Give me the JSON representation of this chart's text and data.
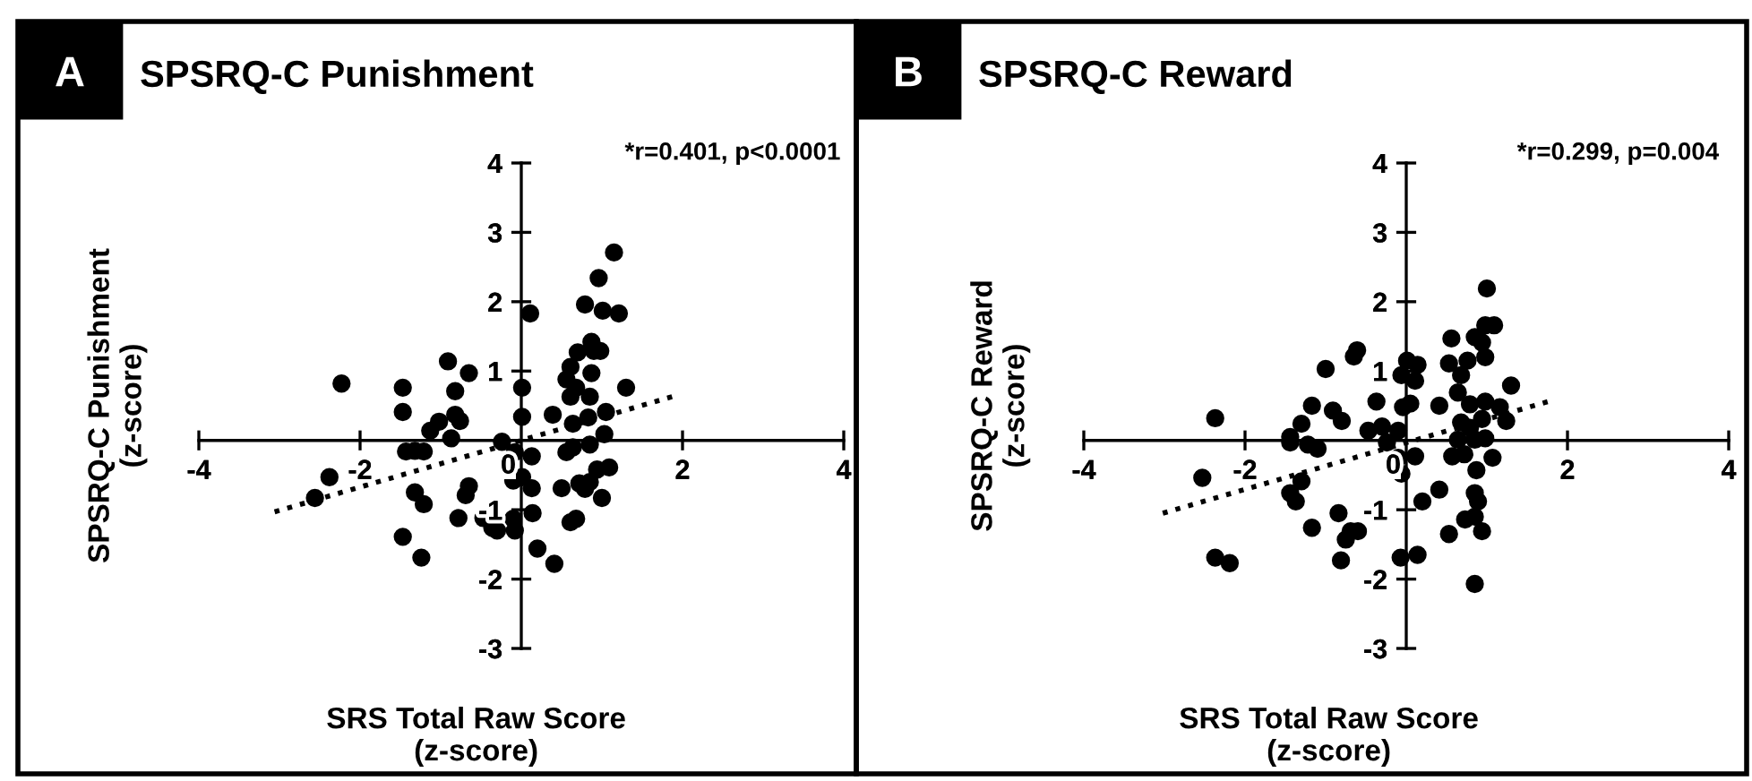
{
  "chart_data": [
    {
      "type": "scatter",
      "title": "SPSRQ-C Punishment",
      "xlabel": "SRS Total Raw Score\n(z-score)",
      "ylabel": "SPSRQ-C Punishment\n(z-score)",
      "annotations": [
        "A",
        "*r=0.401, p<0.0001"
      ],
      "xlim": [
        -4,
        4
      ],
      "ylim": [
        -3,
        4
      ],
      "xticks": [
        -4,
        -2,
        {
          "value": 0,
          "label": "0"
        },
        2,
        4
      ],
      "yticks": [
        -3,
        -2,
        -1,
        1,
        2,
        3,
        4
      ],
      "grid": false,
      "legend": false,
      "marker": "circle",
      "series": [
        {
          "color": "#000000",
          "x": [
            -2.23,
            -1.47,
            -1.47,
            -0.91,
            -0.65,
            -0.82,
            -0.82,
            -0.76,
            -1.02,
            -1.13,
            -0.87,
            -1.43,
            -1.32,
            -1.21,
            -2.38,
            -2.56,
            -1.32,
            -1.21,
            -1.47,
            -1.24,
            -0.65,
            -0.69,
            -0.78,
            -0.47,
            -0.36,
            -0.3,
            -0.1,
            -0.08,
            -0.24,
            0.01,
            0.01,
            0.11,
            -0.08,
            0.13,
            -0.1,
            0.01,
            0.13,
            0.14,
            0.2,
            0.41,
            0.39,
            0.5,
            0.61,
            0.68,
            0.56,
            0.64,
            0.85,
            0.64,
            0.83,
            1.05,
            1.03,
            0.94,
            1.09,
            0.85,
            0.72,
            0.79,
            1.0,
            1.3,
            0.61,
            0.56,
            0.68,
            0.85,
            0.61,
            0.7,
            0.87,
            0.9,
            0.98,
            0.87,
            0.79,
            1.01,
            1.21,
            0.96,
            1.15
          ],
          "values": [
            0.82,
            0.76,
            0.41,
            1.14,
            0.97,
            0.71,
            0.37,
            0.28,
            0.27,
            0.14,
            0.03,
            -0.16,
            -0.15,
            -0.16,
            -0.53,
            -0.83,
            -0.75,
            -0.92,
            -1.39,
            -1.69,
            -0.66,
            -0.79,
            -1.12,
            -1.12,
            -1.26,
            -1.3,
            -1.13,
            -1.3,
            -0.02,
            0.76,
            0.34,
            1.83,
            -0.17,
            -0.23,
            -0.58,
            -0.53,
            -0.69,
            -1.05,
            -1.56,
            -1.78,
            0.37,
            -0.69,
            -1.18,
            -1.13,
            -0.17,
            -0.1,
            -0.06,
            0.24,
            0.33,
            0.41,
            0.09,
            -0.42,
            -0.39,
            -0.6,
            -0.62,
            -0.7,
            -0.83,
            0.76,
            0.63,
            0.88,
            0.76,
            0.63,
            1.06,
            1.27,
            0.97,
            1.29,
            1.29,
            1.42,
            1.96,
            1.87,
            1.83,
            2.34,
            2.71
          ]
        },
        {
          "type": "line",
          "color": "#000000",
          "line_style": "dotted",
          "marker": "none",
          "x": [
            -3.06,
            1.87
          ],
          "values": [
            -1.03,
            0.63
          ]
        }
      ]
    },
    {
      "type": "scatter",
      "title": "SPSRQ-C Reward",
      "xlabel": "SRS Total Raw Score\n(z-score)",
      "ylabel": "SPSRQ-C Reward\n(z-score)",
      "annotations": [
        "B",
        "*r=0.299, p=0.004"
      ],
      "xlim": [
        -4,
        4
      ],
      "ylim": [
        -3,
        4
      ],
      "xticks": [
        -4,
        -2,
        {
          "value": 0,
          "label": "0"
        },
        2,
        4
      ],
      "yticks": [
        -3,
        -2,
        -1,
        1,
        2,
        3,
        4
      ],
      "grid": false,
      "legend": false,
      "marker": "circle",
      "series": [
        {
          "color": "#000000",
          "x": [
            -2.37,
            -2.53,
            -2.37,
            -2.19,
            -1.44,
            -1.44,
            -1.3,
            -1.17,
            -1.22,
            -1.1,
            -1.3,
            -1.44,
            -1.37,
            -1.17,
            -1.0,
            -0.91,
            -0.8,
            -0.65,
            -0.61,
            -0.37,
            -0.47,
            -0.3,
            -0.1,
            -0.24,
            -0.84,
            -0.69,
            -0.75,
            -0.6,
            -0.81,
            -0.07,
            0.14,
            -0.06,
            0.01,
            0.14,
            0.11,
            0.05,
            -0.04,
            -0.1,
            0.11,
            -0.06,
            0.2,
            0.41,
            0.56,
            0.53,
            0.41,
            0.57,
            0.53,
            0.68,
            0.76,
            0.85,
            0.94,
            0.98,
            1.09,
            1.0,
            0.98,
            0.98,
            0.64,
            0.79,
            0.68,
            0.79,
            0.94,
            0.64,
            0.85,
            0.98,
            0.72,
            1.07,
            1.16,
            1.24,
            1.3,
            0.87,
            0.85,
            0.89,
            0.73,
            0.85,
            0.94,
            0.85
          ],
          "values": [
            0.32,
            -0.54,
            -1.69,
            -1.77,
            0.05,
            -0.03,
            0.24,
            0.5,
            -0.06,
            -0.12,
            -0.59,
            -0.76,
            -0.88,
            -1.26,
            1.03,
            0.43,
            0.28,
            1.21,
            1.3,
            0.56,
            0.14,
            0.2,
            0.14,
            -0.03,
            -1.05,
            -1.31,
            -1.43,
            -1.31,
            -1.73,
            -1.69,
            -1.65,
            0.94,
            1.15,
            1.09,
            0.86,
            0.53,
            0.48,
            -0.25,
            -0.23,
            -0.48,
            -0.88,
            -0.71,
            1.47,
            1.11,
            0.5,
            -0.23,
            -1.35,
            0.94,
            1.15,
            1.49,
            1.41,
            1.66,
            1.66,
            2.19,
            1.2,
            0.56,
            0.69,
            0.52,
            0.26,
            0.18,
            0.31,
            0.01,
            0.01,
            0.03,
            -0.2,
            -0.25,
            0.48,
            0.28,
            0.79,
            -0.43,
            -0.76,
            -0.88,
            -1.14,
            -1.1,
            -1.31,
            -2.07
          ]
        },
        {
          "type": "line",
          "color": "#000000",
          "line_style": "dotted",
          "marker": "none",
          "x": [
            -3.02,
            1.76
          ],
          "values": [
            -1.05,
            0.56
          ]
        }
      ]
    }
  ]
}
